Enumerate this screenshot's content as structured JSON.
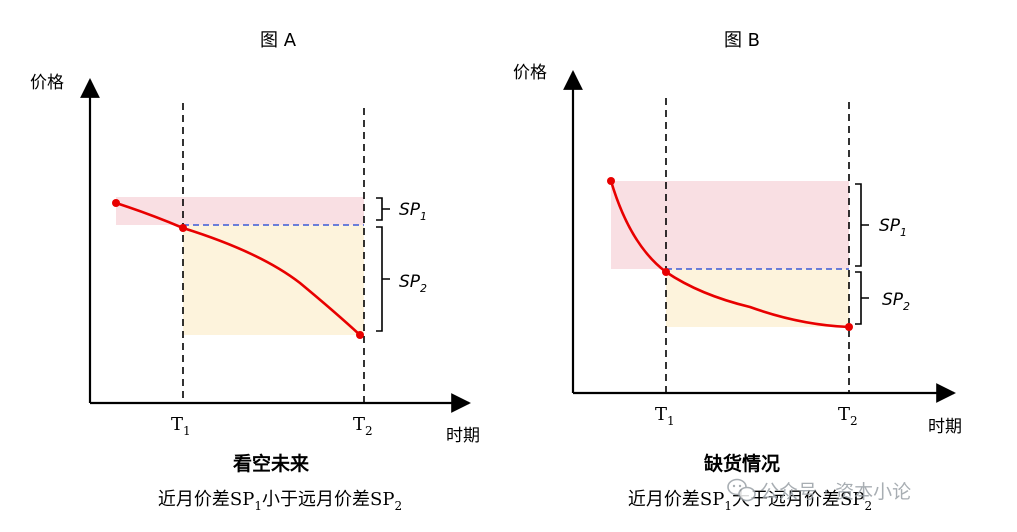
{
  "colors": {
    "curve": "#e80000",
    "upper_band": "#f9dfe3",
    "lower_band": "#fdf3dc",
    "dash_blue": "#3b5bd6",
    "axis": "#000000",
    "watermark": "#9aa0a6"
  },
  "panel_a": {
    "title": "图 A",
    "y_axis_label": "价格",
    "x_axis_label": "时期",
    "t1_label": "T",
    "t1_sub": "1",
    "t2_label": "T",
    "t2_sub": "2",
    "sp1_label": "SP",
    "sp1_sub": "1",
    "sp2_label": "SP",
    "sp2_sub": "2",
    "caption_title": "看空未来",
    "caption_pre": "近月价差SP",
    "caption_sub1": "1",
    "caption_mid": "小于远月价差SP",
    "caption_sub2": "2"
  },
  "panel_b": {
    "title": "图 B",
    "y_axis_label": "价格",
    "x_axis_label": "时期",
    "t1_label": "T",
    "t1_sub": "1",
    "t2_label": "T",
    "t2_sub": "2",
    "sp1_label": "SP",
    "sp1_sub": "1",
    "sp2_label": "SP",
    "sp2_sub": "2",
    "caption_title": "缺货情况",
    "caption_pre": "近月价差SP",
    "caption_sub1": "1",
    "caption_mid": "大于远月价差SP",
    "caption_sub2": "2"
  },
  "watermark": {
    "icon": "wechat-icon",
    "text": "公众号 · 资本小论"
  }
}
